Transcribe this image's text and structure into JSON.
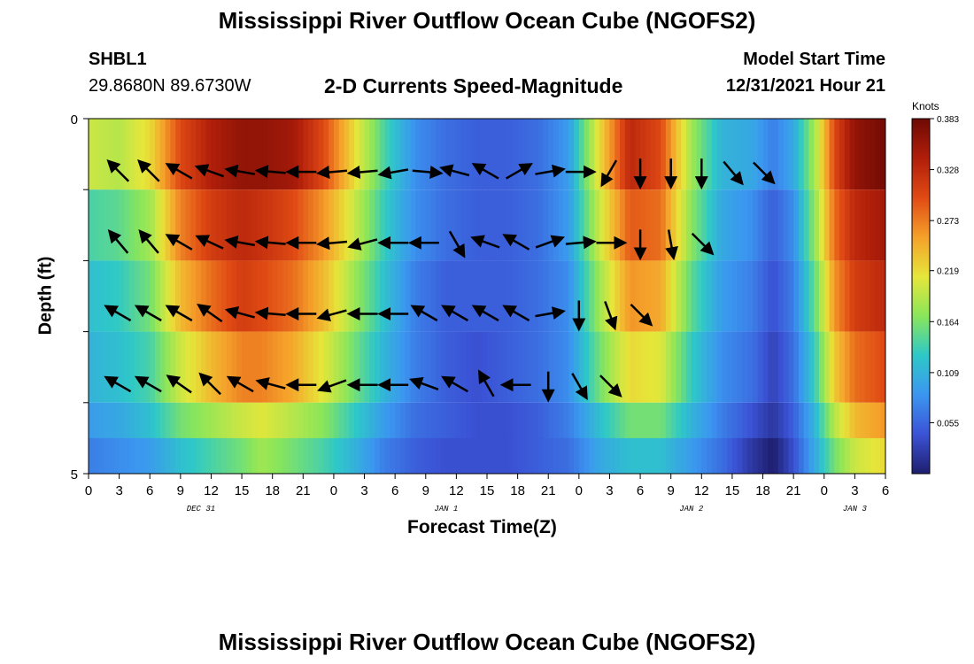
{
  "title": "Mississippi River Outflow Ocean Cube (NGOFS2)",
  "station": {
    "id": "SHBL1",
    "coords": "29.8680N  89.6730W"
  },
  "model_start": {
    "label": "Model Start Time",
    "value": "12/31/2021 Hour 21"
  },
  "chart_data": {
    "type": "heatmap",
    "title": "2-D Currents Speed-Magnitude",
    "xlabel": "Forecast Time(Z)",
    "ylabel": "Depth (ft)",
    "x_ticks": [
      "0",
      "3",
      "6",
      "9",
      "12",
      "15",
      "18",
      "21",
      "0",
      "3",
      "6",
      "9",
      "12",
      "15",
      "18",
      "21",
      "0",
      "3",
      "6",
      "9",
      "12",
      "15",
      "18",
      "21",
      "0",
      "3",
      "6"
    ],
    "x_range_hours": [
      0,
      78
    ],
    "date_labels": [
      {
        "label": "DEC 31",
        "hour": 11
      },
      {
        "label": "JAN 1",
        "hour": 35
      },
      {
        "label": "JAN 2",
        "hour": 59
      },
      {
        "label": "JAN 3",
        "hour": 75
      }
    ],
    "y_ticks": [
      "0",
      "5"
    ],
    "y_range": [
      0,
      5
    ],
    "colorbar": {
      "unit": "Knots",
      "ticks": [
        "0.383",
        "0.328",
        "0.273",
        "0.219",
        "0.164",
        "0.109",
        "0.055"
      ],
      "min": 0.0,
      "max": 0.383,
      "colors": [
        "#1e1e6e",
        "#3b53d6",
        "#3b96f0",
        "#2ec8c8",
        "#8ae65a",
        "#e6e63a",
        "#f5a02a",
        "#e04a14",
        "#b01e0a",
        "#6e0a04"
      ]
    },
    "speed_profile_hours": [
      0,
      3,
      6,
      9,
      12,
      15,
      17,
      20,
      23,
      26,
      29,
      32,
      35,
      38,
      41,
      44,
      47,
      50,
      53,
      56,
      59,
      62,
      65,
      67,
      69,
      71,
      73,
      75,
      78
    ],
    "speed_layers": [
      {
        "layer": 1,
        "depth_top": 0,
        "depth_bottom": 1,
        "speeds": [
          0.2,
          0.19,
          0.22,
          0.3,
          0.34,
          0.36,
          0.36,
          0.35,
          0.3,
          0.22,
          0.14,
          0.08,
          0.06,
          0.05,
          0.05,
          0.06,
          0.09,
          0.22,
          0.33,
          0.3,
          0.18,
          0.11,
          0.1,
          0.07,
          0.1,
          0.18,
          0.3,
          0.36,
          0.38
        ]
      },
      {
        "layer": 2,
        "depth_top": 1,
        "depth_bottom": 2,
        "speeds": [
          0.14,
          0.15,
          0.18,
          0.27,
          0.31,
          0.33,
          0.32,
          0.3,
          0.26,
          0.2,
          0.13,
          0.08,
          0.06,
          0.05,
          0.05,
          0.06,
          0.09,
          0.2,
          0.29,
          0.28,
          0.17,
          0.1,
          0.08,
          0.05,
          0.08,
          0.17,
          0.28,
          0.33,
          0.35
        ]
      },
      {
        "layer": 3,
        "depth_top": 2,
        "depth_bottom": 3,
        "speeds": [
          0.12,
          0.13,
          0.16,
          0.24,
          0.28,
          0.31,
          0.3,
          0.28,
          0.24,
          0.18,
          0.12,
          0.07,
          0.05,
          0.05,
          0.05,
          0.06,
          0.08,
          0.18,
          0.26,
          0.25,
          0.15,
          0.09,
          0.07,
          0.04,
          0.07,
          0.15,
          0.26,
          0.31,
          0.33
        ]
      },
      {
        "layer": 4,
        "depth_top": 3,
        "depth_bottom": 4,
        "speeds": [
          0.11,
          0.12,
          0.14,
          0.2,
          0.24,
          0.27,
          0.27,
          0.25,
          0.21,
          0.16,
          0.11,
          0.07,
          0.05,
          0.04,
          0.05,
          0.06,
          0.08,
          0.16,
          0.22,
          0.21,
          0.13,
          0.08,
          0.06,
          0.03,
          0.06,
          0.13,
          0.23,
          0.28,
          0.3
        ]
      },
      {
        "layer": 5,
        "depth_top": 4,
        "depth_bottom": 5,
        "speeds": [
          0.09,
          0.1,
          0.12,
          0.16,
          0.18,
          0.2,
          0.21,
          0.19,
          0.17,
          0.13,
          0.09,
          0.06,
          0.05,
          0.04,
          0.04,
          0.05,
          0.07,
          0.12,
          0.16,
          0.16,
          0.11,
          0.07,
          0.04,
          0.02,
          0.05,
          0.11,
          0.19,
          0.24,
          0.26
        ]
      },
      {
        "layer": 6,
        "depth_top": 4.5,
        "depth_bottom": 5,
        "speeds": [
          0.07,
          0.08,
          0.09,
          0.12,
          0.14,
          0.16,
          0.18,
          0.16,
          0.14,
          0.11,
          0.07,
          0.05,
          0.04,
          0.04,
          0.04,
          0.05,
          0.06,
          0.1,
          0.12,
          0.12,
          0.09,
          0.06,
          0.02,
          0.0,
          0.04,
          0.1,
          0.16,
          0.2,
          0.22
        ]
      }
    ],
    "arrow_hours": [
      3,
      6,
      9,
      12,
      15,
      18,
      21,
      24,
      27,
      30,
      33,
      36,
      39,
      42,
      45,
      48,
      51,
      54,
      57,
      60,
      63,
      66,
      69,
      72,
      75
    ],
    "arrow_depths": [
      0.5,
      1.5,
      2.5,
      3.5
    ],
    "arrow_directions_deg": [
      [
        315,
        315,
        300,
        290,
        280,
        275,
        270,
        265,
        265,
        260,
        95,
        285,
        300,
        60,
        80,
        90,
        210,
        180,
        180,
        180,
        140,
        135
      ],
      [
        320,
        320,
        300,
        295,
        280,
        275,
        270,
        265,
        255,
        270,
        270,
        150,
        290,
        300,
        70,
        85,
        90,
        180,
        170,
        135
      ],
      [
        300,
        300,
        300,
        305,
        285,
        275,
        270,
        255,
        270,
        270,
        300,
        300,
        300,
        300,
        80,
        180,
        160,
        135
      ],
      [
        300,
        300,
        305,
        315,
        300,
        285,
        270,
        250,
        270,
        270,
        290,
        300,
        330,
        270,
        180,
        150,
        135
      ]
    ]
  }
}
